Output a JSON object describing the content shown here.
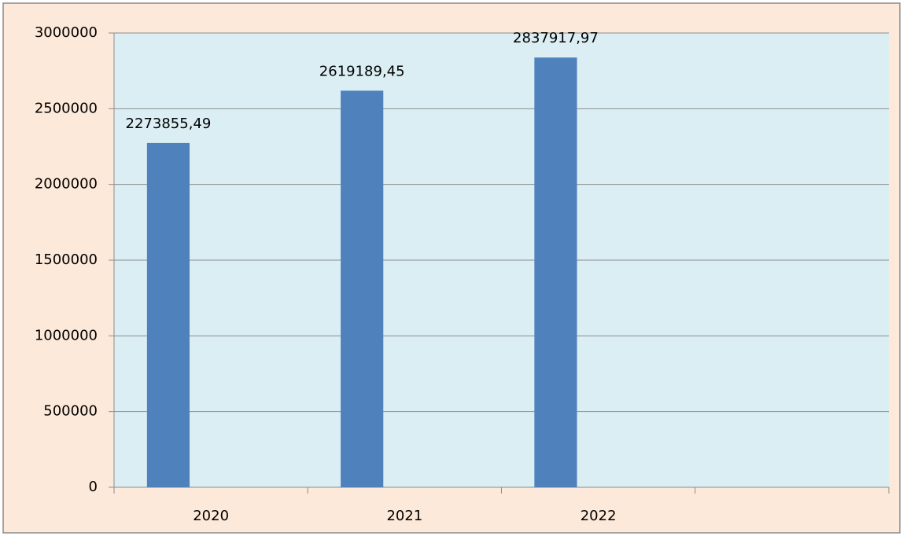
{
  "chart_data": {
    "type": "bar",
    "categories": [
      "2020",
      "2021",
      "2022",
      null
    ],
    "values": [
      2273855.49,
      2619189.45,
      2837917.97,
      null
    ],
    "value_labels": [
      "2273855,49",
      "2619189,45",
      "2837917,97",
      null
    ],
    "color": "#4f81bd",
    "ylim": [
      0,
      3000000
    ],
    "yticks": [
      0,
      500000,
      1000000,
      1500000,
      2000000,
      2500000,
      3000000
    ],
    "grid": true
  }
}
